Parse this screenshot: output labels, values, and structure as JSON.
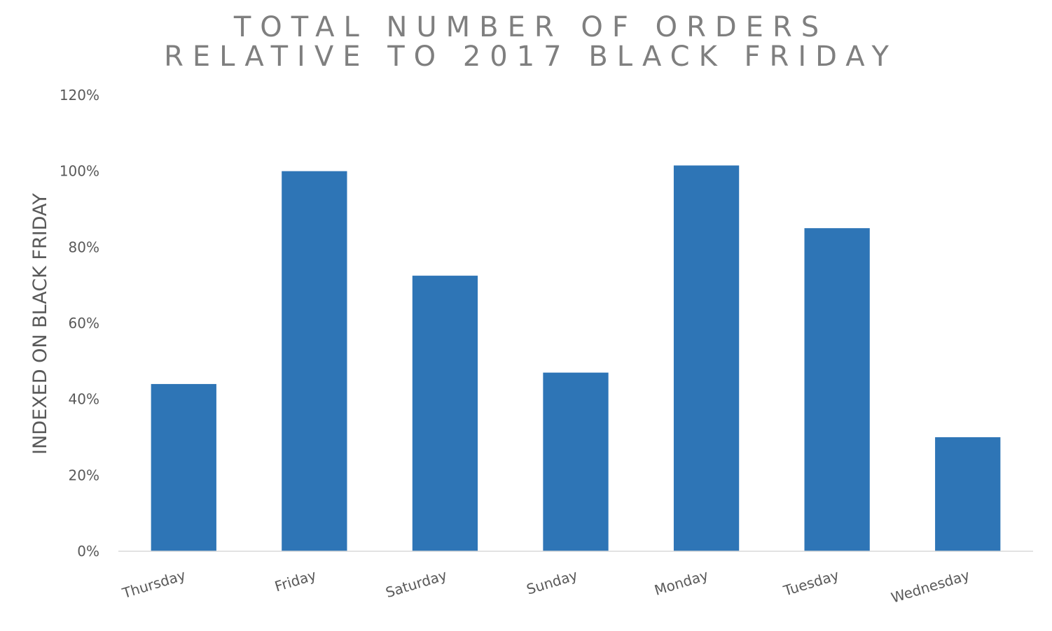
{
  "chart_data": {
    "type": "bar",
    "title_lines": [
      "TOTAL NUMBER OF ORDERS",
      "RELATIVE TO 2017 BLACK FRIDAY"
    ],
    "ylabel": "INDEXED ON BLACK FRIDAY",
    "xlabel": "",
    "categories": [
      "Thursday",
      "Friday",
      "Saturday",
      "Sunday",
      "Monday",
      "Tuesday",
      "Wednesday"
    ],
    "series": [
      {
        "values": [
          44,
          100,
          72.5,
          47,
          101.5,
          85,
          30
        ],
        "color": "#2e75b6"
      }
    ],
    "ylim": [
      0,
      120
    ],
    "yticks": [
      0,
      20,
      40,
      60,
      80,
      100,
      120
    ],
    "ytick_labels": [
      "0%",
      "20%",
      "40%",
      "60%",
      "80%",
      "100%",
      "120%"
    ],
    "grid": false,
    "legend": "none",
    "colors": {
      "bar": "#2e75b6",
      "text": "#595959",
      "title": "#7f7f7f",
      "axis": "#d9d9d9"
    }
  }
}
